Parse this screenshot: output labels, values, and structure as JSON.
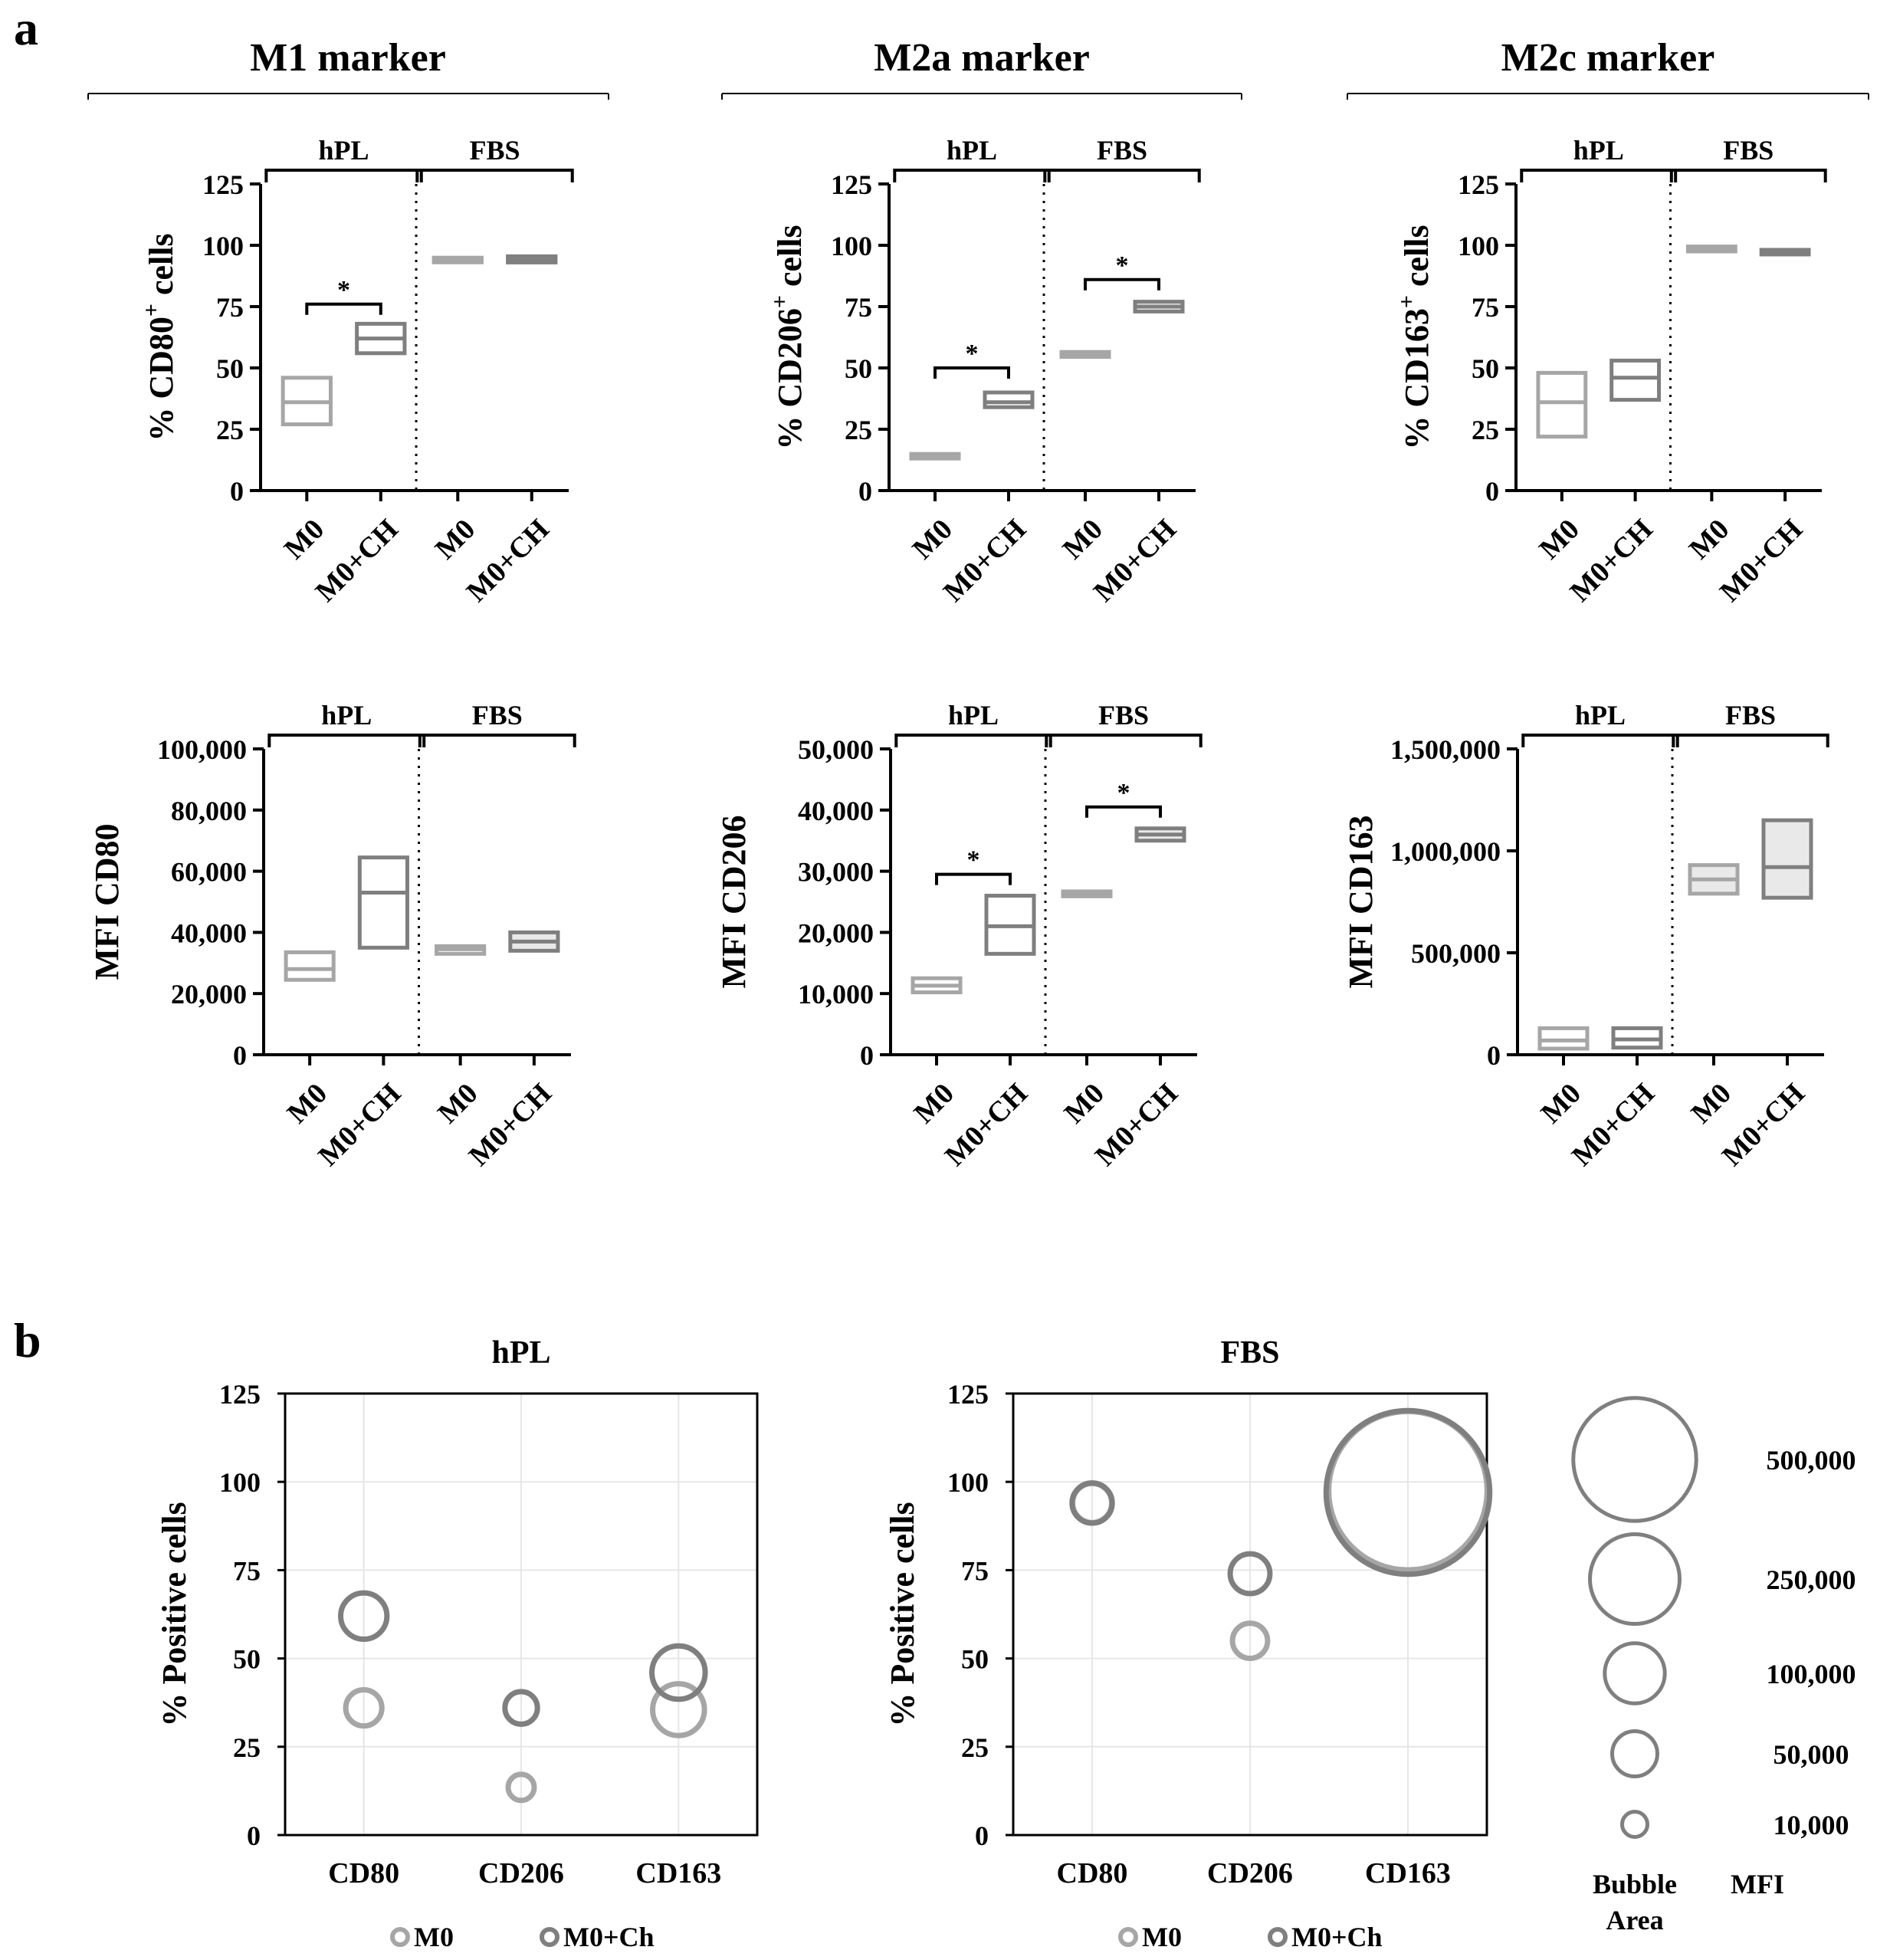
{
  "panel_a_letter": "a",
  "panel_b_letter": "b",
  "colors": {
    "m0": "#a6a6a6",
    "m0ch": "#7f7f7f",
    "axis": "#000000",
    "grid": "#e6e6e6"
  },
  "groups": [
    {
      "title": "M1 marker"
    },
    {
      "title": "M2a marker"
    },
    {
      "title": "M2c marker"
    }
  ],
  "conditions": {
    "hpl": "hPL",
    "fbs": "FBS"
  },
  "x_categories": [
    "M0",
    "M0+CH",
    "M0",
    "M0+CH"
  ],
  "sig_symbol": "*",
  "chart_data": [
    {
      "type": "box",
      "id": "cd80pct",
      "ylabel_pre": "% CD80",
      "ylabel_sup": "+",
      "ylabel_post": " cells",
      "ylim": [
        0,
        125
      ],
      "yticks": [
        {
          "v": 0,
          "t": "0"
        },
        {
          "v": 25,
          "t": "25"
        },
        {
          "v": 50,
          "t": "50"
        },
        {
          "v": 75,
          "t": "75"
        },
        {
          "v": 100,
          "t": "100"
        },
        {
          "v": 125,
          "t": "125"
        }
      ],
      "boxes": [
        {
          "category": "hPL M0",
          "min": 27,
          "median": 36,
          "max": 46
        },
        {
          "category": "hPL M0+CH",
          "min": 56,
          "median": 62,
          "max": 68
        },
        {
          "category": "FBS M0",
          "min": 93.5,
          "median": 94,
          "max": 94.5
        },
        {
          "category": "FBS M0+CH",
          "min": 93,
          "median": 94,
          "max": 95.5
        }
      ],
      "sig": [
        {
          "a": 0,
          "b": 1,
          "y": 76
        }
      ]
    },
    {
      "type": "box",
      "id": "cd206pct",
      "ylabel_pre": "% CD206",
      "ylabel_sup": "+",
      "ylabel_post": " cells",
      "ylim": [
        0,
        125
      ],
      "yticks": [
        {
          "v": 0,
          "t": "0"
        },
        {
          "v": 25,
          "t": "25"
        },
        {
          "v": 50,
          "t": "50"
        },
        {
          "v": 75,
          "t": "75"
        },
        {
          "v": 100,
          "t": "100"
        },
        {
          "v": 125,
          "t": "125"
        }
      ],
      "boxes": [
        {
          "category": "hPL M0",
          "min": 13.5,
          "median": 14,
          "max": 14.5
        },
        {
          "category": "hPL M0+CH",
          "min": 34,
          "median": 36,
          "max": 40
        },
        {
          "category": "FBS M0",
          "min": 54.5,
          "median": 55.5,
          "max": 56.5
        },
        {
          "category": "FBS M0+CH",
          "min": 73,
          "median": 75,
          "max": 77
        }
      ],
      "sig": [
        {
          "a": 0,
          "b": 1,
          "y": 50
        },
        {
          "a": 2,
          "b": 3,
          "y": 86
        }
      ]
    },
    {
      "type": "box",
      "id": "cd163pct",
      "ylabel_pre": "% CD163",
      "ylabel_sup": "+",
      "ylabel_post": " cells",
      "ylim": [
        0,
        125
      ],
      "yticks": [
        {
          "v": 0,
          "t": "0"
        },
        {
          "v": 25,
          "t": "25"
        },
        {
          "v": 50,
          "t": "50"
        },
        {
          "v": 75,
          "t": "75"
        },
        {
          "v": 100,
          "t": "100"
        },
        {
          "v": 125,
          "t": "125"
        }
      ],
      "boxes": [
        {
          "category": "hPL M0",
          "min": 22,
          "median": 36,
          "max": 48
        },
        {
          "category": "hPL M0+CH",
          "min": 37,
          "median": 46,
          "max": 53
        },
        {
          "category": "FBS M0",
          "min": 97.5,
          "median": 98.5,
          "max": 99.5
        },
        {
          "category": "FBS M0+CH",
          "min": 96.8,
          "median": 97.2,
          "max": 97.6
        }
      ],
      "sig": []
    },
    {
      "type": "box",
      "id": "cd80mfi",
      "ylabel": "MFI CD80",
      "ylim": [
        0,
        100000
      ],
      "yticks": [
        {
          "v": 0,
          "t": "0"
        },
        {
          "v": 20000,
          "t": "20,000"
        },
        {
          "v": 40000,
          "t": "40,000"
        },
        {
          "v": 60000,
          "t": "60,000"
        },
        {
          "v": 80000,
          "t": "80,000"
        },
        {
          "v": 100000,
          "t": "100,000"
        }
      ],
      "boxes": [
        {
          "category": "hPL M0",
          "min": 24500,
          "median": 28000,
          "max": 33500
        },
        {
          "category": "hPL M0+CH",
          "min": 35000,
          "median": 53000,
          "max": 64500
        },
        {
          "category": "FBS M0",
          "min": 33000,
          "median": 34500,
          "max": 35500
        },
        {
          "category": "FBS M0+CH",
          "min": 34000,
          "median": 37000,
          "max": 40000
        }
      ],
      "sig": []
    },
    {
      "type": "box",
      "id": "cd206mfi",
      "ylabel": "MFI CD206",
      "ylim": [
        0,
        50000
      ],
      "yticks": [
        {
          "v": 0,
          "t": "0"
        },
        {
          "v": 10000,
          "t": "10,000"
        },
        {
          "v": 20000,
          "t": "20,000"
        },
        {
          "v": 30000,
          "t": "30,000"
        },
        {
          "v": 40000,
          "t": "40,000"
        },
        {
          "v": 50000,
          "t": "50,000"
        }
      ],
      "boxes": [
        {
          "category": "hPL M0",
          "min": 10200,
          "median": 11300,
          "max": 12500
        },
        {
          "category": "hPL M0+CH",
          "min": 16500,
          "median": 21000,
          "max": 26000
        },
        {
          "category": "FBS M0",
          "min": 25900,
          "median": 26300,
          "max": 26700
        },
        {
          "category": "FBS M0+CH",
          "min": 35000,
          "median": 36000,
          "max": 37000
        }
      ],
      "sig": [
        {
          "a": 0,
          "b": 1,
          "y": 29500
        },
        {
          "a": 2,
          "b": 3,
          "y": 40500
        }
      ]
    },
    {
      "type": "box",
      "id": "cd163mfi",
      "ylabel": "MFI CD163",
      "ylim": [
        0,
        1500000
      ],
      "yticks": [
        {
          "v": 0,
          "t": "0"
        },
        {
          "v": 500000,
          "t": "500,000"
        },
        {
          "v": 1000000,
          "t": "1,000,000"
        },
        {
          "v": 1500000,
          "t": "1,500,000"
        }
      ],
      "boxes": [
        {
          "category": "hPL M0",
          "min": 30000,
          "median": 70000,
          "max": 130000
        },
        {
          "category": "hPL M0+CH",
          "min": 35000,
          "median": 75000,
          "max": 130000
        },
        {
          "category": "FBS M0",
          "min": 790000,
          "median": 860000,
          "max": 930000
        },
        {
          "category": "FBS M0+CH",
          "min": 770000,
          "median": 920000,
          "max": 1150000
        }
      ],
      "sig": []
    },
    {
      "type": "bubble",
      "id": "bubble_hpl",
      "title": "hPL",
      "ylabel": "% Positive cells",
      "ylim": [
        0,
        125
      ],
      "yticks": [
        {
          "v": 0,
          "t": "0"
        },
        {
          "v": 25,
          "t": "25"
        },
        {
          "v": 50,
          "t": "50"
        },
        {
          "v": 75,
          "t": "75"
        },
        {
          "v": 100,
          "t": "100"
        },
        {
          "v": 125,
          "t": "125"
        }
      ],
      "categories": [
        "CD80",
        "CD206",
        "CD163"
      ],
      "series": [
        {
          "name": "M0",
          "color_key": "m0",
          "points": [
            {
              "cat": 0,
              "y": 36,
              "mfi": 28000
            },
            {
              "cat": 1,
              "y": 13.5,
              "mfi": 11000
            },
            {
              "cat": 2,
              "y": 35.5,
              "mfi": 70000
            }
          ]
        },
        {
          "name": "M0+Ch",
          "color_key": "m0ch",
          "points": [
            {
              "cat": 0,
              "y": 62,
              "mfi": 53000
            },
            {
              "cat": 1,
              "y": 36,
              "mfi": 21000
            },
            {
              "cat": 2,
              "y": 46,
              "mfi": 75000
            }
          ]
        }
      ]
    },
    {
      "type": "bubble",
      "id": "bubble_fbs",
      "title": "FBS",
      "ylabel": "% Positive cells",
      "ylim": [
        0,
        125
      ],
      "yticks": [
        {
          "v": 0,
          "t": "0"
        },
        {
          "v": 25,
          "t": "25"
        },
        {
          "v": 50,
          "t": "50"
        },
        {
          "v": 75,
          "t": "75"
        },
        {
          "v": 100,
          "t": "100"
        },
        {
          "v": 125,
          "t": "125"
        }
      ],
      "categories": [
        "CD80",
        "CD206",
        "CD163"
      ],
      "series": [
        {
          "name": "M0",
          "color_key": "m0",
          "points": [
            {
              "cat": 0,
              "y": 94,
              "mfi": 34500
            },
            {
              "cat": 1,
              "y": 55,
              "mfi": 26000
            },
            {
              "cat": 2,
              "y": 97.5,
              "mfi": 860000
            }
          ]
        },
        {
          "name": "M0+Ch",
          "color_key": "m0ch",
          "points": [
            {
              "cat": 0,
              "y": 94,
              "mfi": 37000
            },
            {
              "cat": 1,
              "y": 74,
              "mfi": 36000
            },
            {
              "cat": 2,
              "y": 97,
              "mfi": 920000
            }
          ]
        }
      ]
    }
  ],
  "bubble_legend": {
    "entries": [
      {
        "mfi": 500000,
        "label": "500,000"
      },
      {
        "mfi": 250000,
        "label": "250,000"
      },
      {
        "mfi": 100000,
        "label": "100,000"
      },
      {
        "mfi": 50000,
        "label": "50,000"
      },
      {
        "mfi": 10000,
        "label": "10,000"
      }
    ],
    "area_label_line1": "Bubble",
    "area_label_line2": "Area",
    "mfi_label": "MFI"
  },
  "series_legend": {
    "m0": "M0",
    "m0ch": "M0+Ch"
  }
}
